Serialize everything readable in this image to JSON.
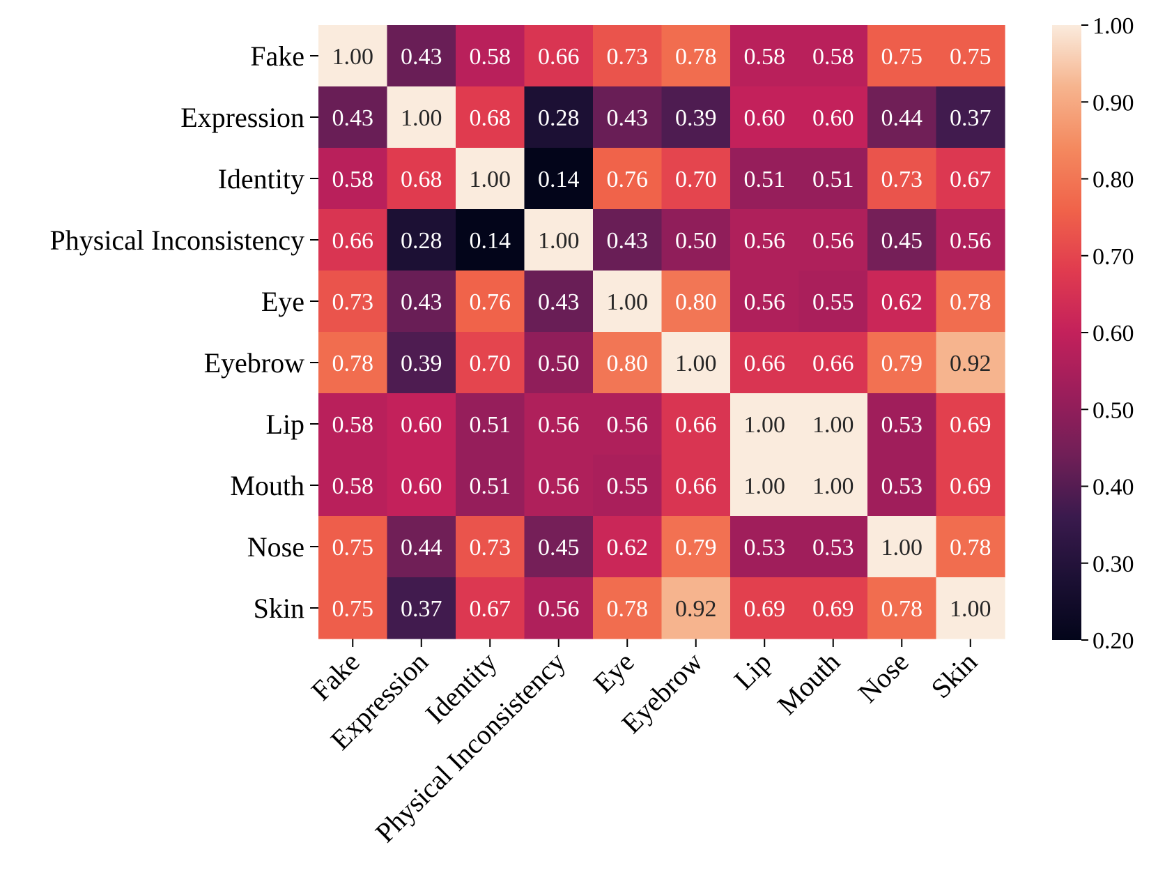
{
  "chart_data": {
    "type": "heatmap",
    "title": "",
    "xlabel": "",
    "ylabel": "",
    "rows": [
      "Fake",
      "Expression",
      "Identity",
      "Physical Inconsistency",
      "Eye",
      "Eyebrow",
      "Lip",
      "Mouth",
      "Nose",
      "Skin"
    ],
    "columns": [
      "Fake",
      "Expression",
      "Identity",
      "Physical Inconsistency",
      "Eye",
      "Eyebrow",
      "Lip",
      "Mouth",
      "Nose",
      "Skin"
    ],
    "values": [
      [
        1.0,
        0.43,
        0.58,
        0.66,
        0.73,
        0.78,
        0.58,
        0.58,
        0.75,
        0.75
      ],
      [
        0.43,
        1.0,
        0.68,
        0.28,
        0.43,
        0.39,
        0.6,
        0.6,
        0.44,
        0.37
      ],
      [
        0.58,
        0.68,
        1.0,
        0.14,
        0.76,
        0.7,
        0.51,
        0.51,
        0.73,
        0.67
      ],
      [
        0.66,
        0.28,
        0.14,
        1.0,
        0.43,
        0.5,
        0.56,
        0.56,
        0.45,
        0.56
      ],
      [
        0.73,
        0.43,
        0.76,
        0.43,
        1.0,
        0.8,
        0.56,
        0.55,
        0.62,
        0.78
      ],
      [
        0.78,
        0.39,
        0.7,
        0.5,
        0.8,
        1.0,
        0.66,
        0.66,
        0.79,
        0.92
      ],
      [
        0.58,
        0.6,
        0.51,
        0.56,
        0.56,
        0.66,
        1.0,
        1.0,
        0.53,
        0.69
      ],
      [
        0.58,
        0.6,
        0.51,
        0.56,
        0.55,
        0.66,
        1.0,
        1.0,
        0.53,
        0.69
      ],
      [
        0.75,
        0.44,
        0.73,
        0.45,
        0.62,
        0.79,
        0.53,
        0.53,
        1.0,
        0.78
      ],
      [
        0.75,
        0.37,
        0.67,
        0.56,
        0.78,
        0.92,
        0.69,
        0.69,
        0.78,
        1.0
      ]
    ],
    "value_format": "0.00",
    "colormap": "rocket",
    "color_range": [
      0.2,
      1.0
    ],
    "colorbar": {
      "ticks": [
        1.0,
        0.9,
        0.8,
        0.7,
        0.6,
        0.5,
        0.4,
        0.3,
        0.2
      ],
      "tick_labels": [
        "1.00",
        "0.90",
        "0.80",
        "0.70",
        "0.60",
        "0.50",
        "0.40",
        "0.30",
        "0.20"
      ],
      "placement": "right"
    },
    "grid": false,
    "annotations": true
  },
  "colors": {
    "rocket_stops": [
      "#03051a",
      "#1c1034",
      "#3a1a4d",
      "#701f57",
      "#9b1e5b",
      "#c3215b",
      "#e03b4f",
      "#f0634a",
      "#f4895f",
      "#f6b48e",
      "#faebdd"
    ],
    "text_dark": "#262626",
    "text_light": "#ffffff"
  }
}
